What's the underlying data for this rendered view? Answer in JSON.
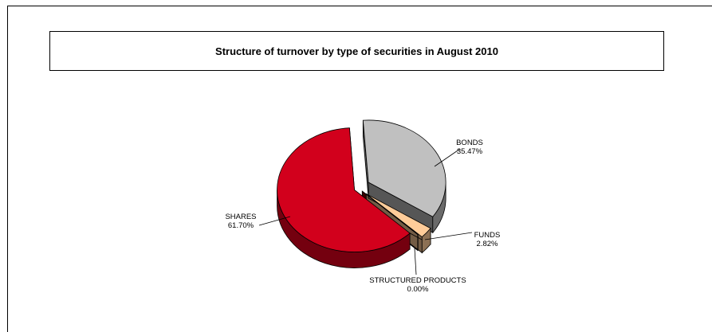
{
  "chart_data": {
    "type": "pie",
    "title": "Structure of turnover by type of securities in August 2010",
    "categories": [
      "SHARES",
      "BONDS",
      "FUNDS",
      "STRUCTURED PRODUCTS"
    ],
    "values": [
      61.7,
      35.47,
      2.82,
      0.0
    ],
    "value_labels": [
      "61.70%",
      "35.47%",
      "2.82%",
      "0.00%"
    ],
    "colors": [
      "#d2001c",
      "#c0c0c0",
      "#ffcc99",
      "#800000"
    ],
    "style": "3d-exploded",
    "legend": "none"
  }
}
